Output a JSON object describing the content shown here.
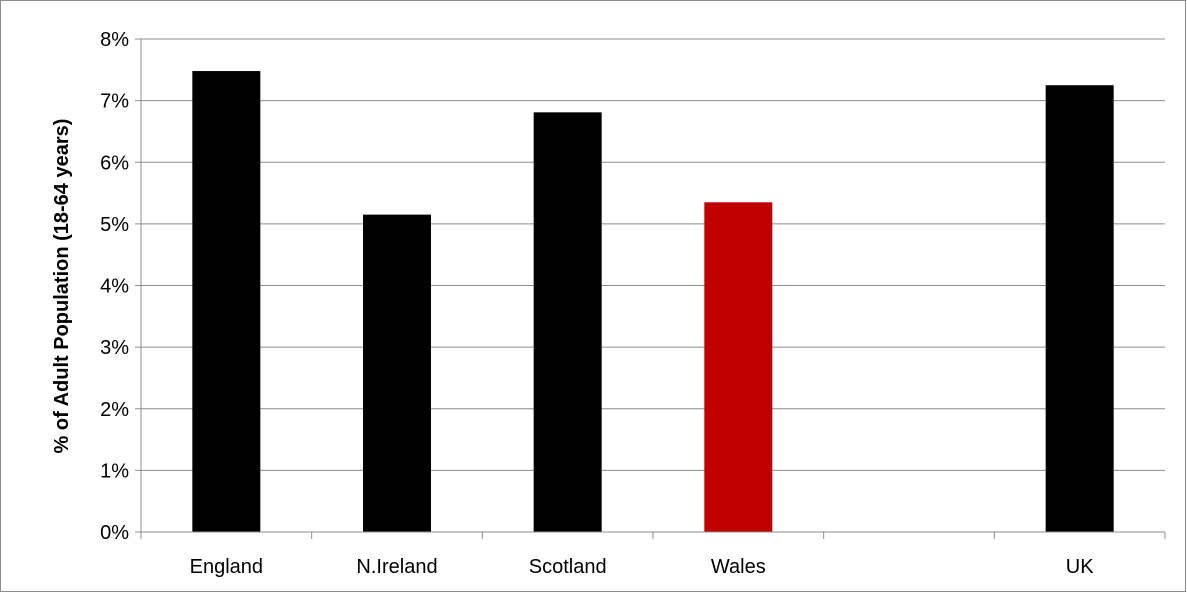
{
  "chart_data": {
    "type": "bar",
    "title": "",
    "xlabel": "",
    "ylabel": "% of Adult Population (18-64 years)",
    "categories": [
      "England",
      "N.Ireland",
      "Scotland",
      "Wales",
      "",
      "UK"
    ],
    "values": [
      7.48,
      5.15,
      6.81,
      5.35,
      null,
      7.25
    ],
    "bar_colors": [
      "#000000",
      "#000000",
      "#000000",
      "#c00000",
      "#000000",
      "#000000"
    ],
    "ylim": [
      0,
      8
    ],
    "yticks": [
      0,
      1,
      2,
      3,
      4,
      5,
      6,
      7,
      8
    ],
    "ytick_labels": [
      "0%",
      "1%",
      "2%",
      "3%",
      "4%",
      "5%",
      "6%",
      "7%",
      "8%"
    ],
    "grid": true,
    "legend": "none",
    "colors": {
      "bar_default": "#000000",
      "bar_highlight": "#c00000",
      "gridline": "#8c8c8c",
      "axis": "#8c8c8c"
    }
  }
}
